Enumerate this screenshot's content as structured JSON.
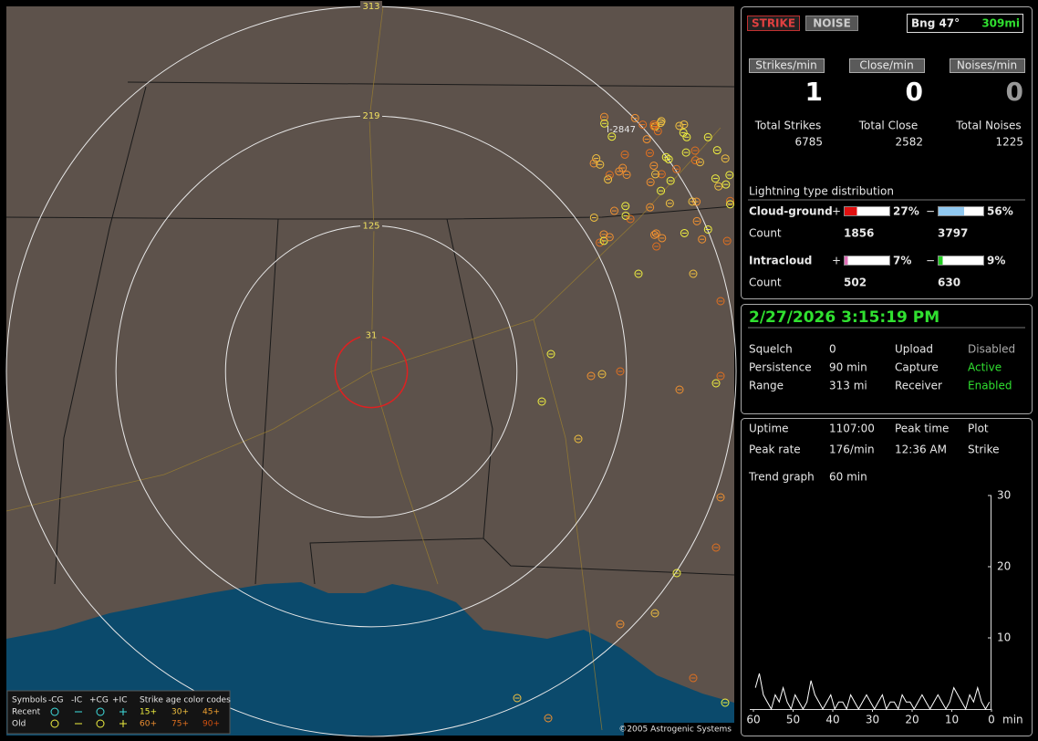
{
  "header": {
    "mode_buttons": [
      "STRIKE",
      "NOISE"
    ],
    "bearing": "Bng 47°",
    "distance": "309mi"
  },
  "rates": [
    {
      "label": "Strikes/min",
      "value": 1
    },
    {
      "label": "Close/min",
      "value": 0
    },
    {
      "label": "Noises/min",
      "value": 0
    }
  ],
  "totals": [
    {
      "label": "Total Strikes",
      "value": 6785
    },
    {
      "label": "Total Close",
      "value": 2582
    },
    {
      "label": "Total Noises",
      "value": 1225
    }
  ],
  "distribution": {
    "title": "Lightning type distribution",
    "count_label": "Count",
    "rows": [
      {
        "name": "Cloud-ground",
        "plus": {
          "sign": "+",
          "percent": {
            "value": 27,
            "label": "27%"
          },
          "count": 1856,
          "color": "#e01010"
        },
        "minus": {
          "sign": "−",
          "percent": {
            "value": 56,
            "label": "56%"
          },
          "count": 3797,
          "color": "#90c8f0"
        }
      },
      {
        "name": "Intracloud",
        "plus": {
          "sign": "+",
          "percent": {
            "value": 7,
            "label": "7%"
          },
          "count": 502,
          "color": "#e070b8"
        },
        "minus": {
          "sign": "−",
          "percent": {
            "value": 9,
            "label": "9%"
          },
          "count": 630,
          "color": "#22cc22"
        }
      }
    ]
  },
  "status": {
    "datetime": "2/27/2026 3:15:19 PM",
    "items": [
      {
        "label": "Squelch",
        "value": "0"
      },
      {
        "label": "Upload",
        "value": "Disabled"
      },
      {
        "label": "Persistence",
        "value": "90 min"
      },
      {
        "label": "Capture",
        "value": "Active"
      },
      {
        "label": "Range",
        "value": "313 mi"
      },
      {
        "label": "Receiver",
        "value": "Enabled"
      }
    ]
  },
  "stats": {
    "items": [
      {
        "label": "Uptime",
        "value": "1107:00"
      },
      {
        "label": "Peak time",
        "value": "12:36 AM"
      },
      {
        "label": "Plot",
        "value": "Strike"
      },
      {
        "label": "Peak rate",
        "value": "176/min"
      },
      {
        "label": "Trend graph",
        "value": "60 min"
      }
    ]
  },
  "trend": {
    "xlim": [
      60,
      0
    ],
    "xticks": [
      60,
      50,
      40,
      30,
      20,
      10,
      0
    ],
    "x_unit": "min",
    "ylim": [
      0,
      30
    ],
    "yticks": [
      10,
      20,
      30
    ],
    "values": [
      3,
      5,
      2,
      1,
      0,
      2,
      1,
      3,
      1,
      0,
      2,
      1,
      0,
      1,
      4,
      2,
      1,
      0,
      1,
      2,
      0,
      1,
      1,
      0,
      2,
      1,
      0,
      1,
      2,
      1,
      0,
      1,
      2,
      0,
      1,
      1,
      0,
      2,
      1,
      1,
      0,
      1,
      2,
      1,
      0,
      1,
      2,
      1,
      0,
      1,
      3,
      2,
      1,
      0,
      2,
      1,
      3,
      1,
      0,
      1
    ]
  },
  "map": {
    "range_rings": [
      313,
      219,
      125,
      31
    ],
    "marker_label": "I-2847",
    "legend": {
      "symbols_label": "Symbols",
      "symbol_headers": [
        "-CG",
        "-IC",
        "+CG",
        "+IC"
      ],
      "age_title": "Strike age color codes",
      "rows": [
        {
          "label": "Recent",
          "ages": [
            "15+",
            "30+",
            "45+"
          ]
        },
        {
          "label": "Old",
          "ages": [
            "60+",
            "75+",
            "90+"
          ]
        }
      ]
    },
    "copyright": "©2005 Astrogenic Systems"
  }
}
